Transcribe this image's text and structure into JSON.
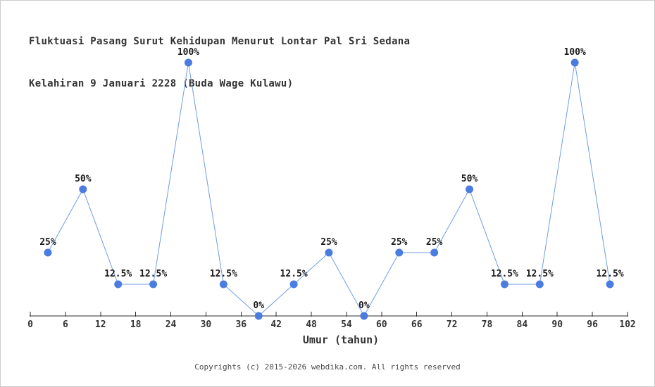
{
  "page": {
    "title_line1": "Fluktuasi Pasang Surut Kehidupan Menurut Lontar Pal Sri Sedana",
    "title_line2": "Kelahiran 9 Januari 2228 (Buda Wage Kulawu)"
  },
  "footer": {
    "copyright": "Copyrights (c) 2015-2026 webdika.com. All rights reserved"
  },
  "chart_data": {
    "type": "line",
    "title": "Fluktuasi Pasang Surut Kehidupan Menurut Lontar Pal Sri Sedana Kelahiran 9 Januari 2228 (Buda Wage Kulawu)",
    "xlabel": "Umur (tahun)",
    "ylabel": "",
    "x": [
      3,
      9,
      15,
      21,
      27,
      33,
      39,
      45,
      51,
      57,
      63,
      69,
      75,
      81,
      87,
      93,
      99
    ],
    "values": [
      25,
      50,
      12.5,
      12.5,
      100,
      12.5,
      0,
      12.5,
      25,
      0,
      25,
      25,
      50,
      12.5,
      12.5,
      100,
      12.5
    ],
    "point_labels": [
      "25%",
      "50%",
      "12.5%",
      "12.5%",
      "100%",
      "12.5%",
      "0%",
      "12.5%",
      "25%",
      "0%",
      "25%",
      "25%",
      "50%",
      "12.5%",
      "12.5%",
      "100%",
      "12.5%"
    ],
    "x_ticks": [
      0,
      6,
      12,
      18,
      24,
      30,
      36,
      42,
      48,
      54,
      60,
      66,
      72,
      78,
      84,
      90,
      96,
      102
    ],
    "xlim": [
      0,
      102
    ],
    "ylim": [
      0,
      100
    ],
    "grid": false,
    "legend": "none",
    "colors": {
      "line": "#6f9de6",
      "marker": "#4b7ce0",
      "axis": "#2e2e2e",
      "tick_text": "#333333",
      "point_label_text": "#1a1a1a",
      "title_text": "#333333",
      "copyright_text": "#4a4a4a"
    }
  }
}
